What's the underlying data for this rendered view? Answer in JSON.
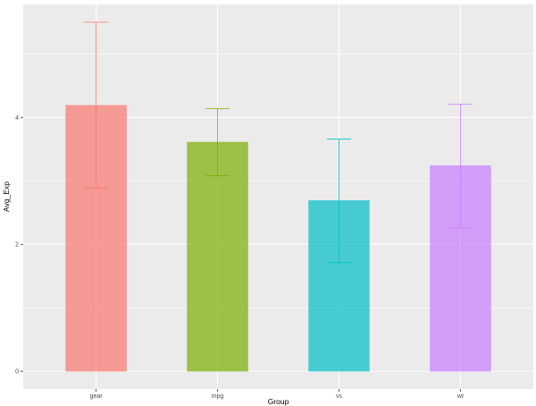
{
  "chart_data": {
    "type": "bar",
    "title": "",
    "xlabel": "Group",
    "ylabel": "Avg_Exp",
    "categories": [
      "gear",
      "mpg",
      "vs",
      "wt"
    ],
    "values": [
      4.19,
      3.61,
      2.69,
      3.24
    ],
    "error_low": [
      2.88,
      3.08,
      1.71,
      2.26
    ],
    "error_high": [
      5.5,
      4.14,
      3.66,
      4.21
    ],
    "colors": [
      "#F8766D",
      "#7CAE00",
      "#00BFC4",
      "#C77CFF"
    ],
    "bar_opacity": 0.7,
    "ylim": [
      -0.28,
      5.78
    ],
    "yticks": [
      0,
      2,
      4
    ],
    "ytick_labels": [
      "0",
      "2",
      "4"
    ],
    "grid": true,
    "legend": "none",
    "panel_background": "#EBEBEB"
  }
}
